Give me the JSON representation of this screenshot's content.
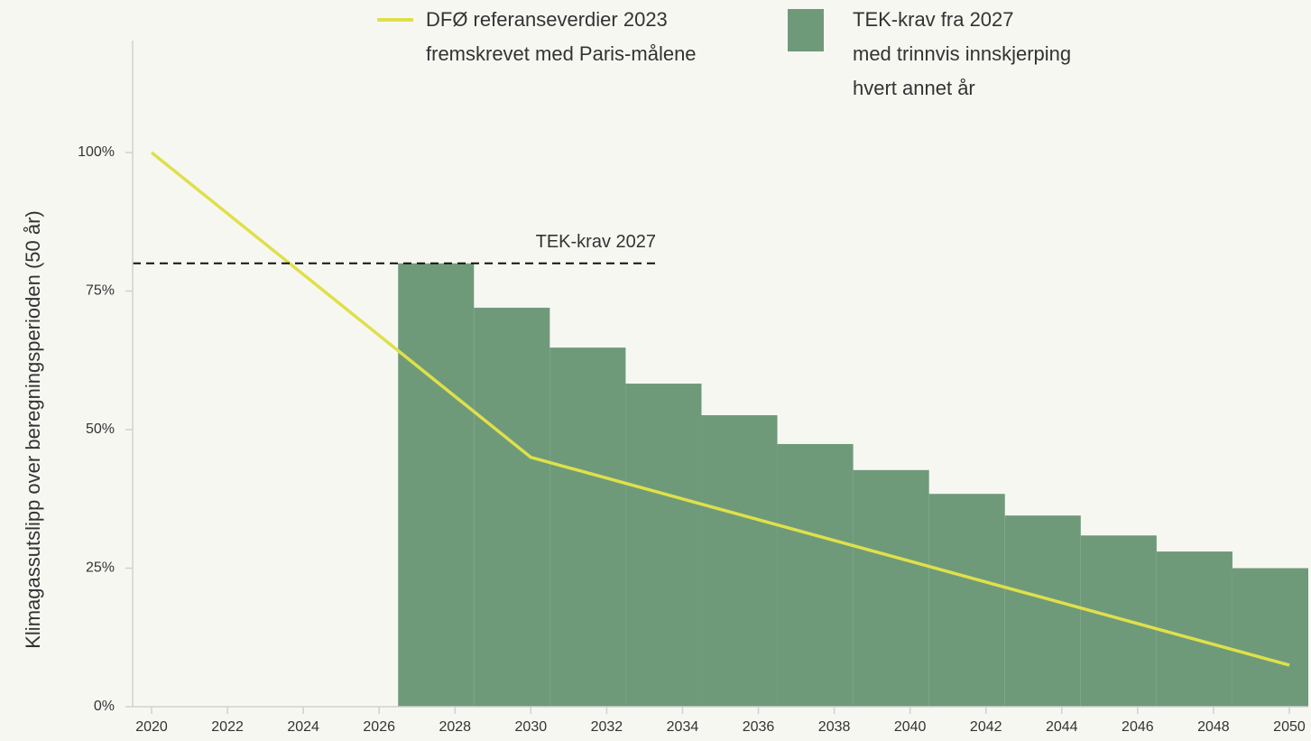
{
  "chart_data": {
    "type": "line",
    "ylabel": "Klimagassutslipp over  beregningsperioden (50 år)",
    "xlim": [
      2019.5,
      2050.5
    ],
    "xticks": [
      2020,
      2022,
      2024,
      2026,
      2028,
      2030,
      2032,
      2034,
      2036,
      2038,
      2040,
      2042,
      2044,
      2046,
      2048,
      2050
    ],
    "ylim": [
      0,
      120
    ],
    "yticks": [
      {
        "value": 0,
        "label": "0%"
      },
      {
        "value": 25,
        "label": "25%"
      },
      {
        "value": 50,
        "label": "50%"
      },
      {
        "value": 75,
        "label": "75%"
      },
      {
        "value": 100,
        "label": "100%"
      }
    ],
    "grid": false,
    "series": [
      {
        "name": "TEK-krav fra 2027\nmed trinnvis innskjerping\nhvert annet år",
        "type": "step",
        "color": "#6f9a7a",
        "x": [
          2027,
          2029,
          2031,
          2033,
          2035,
          2037,
          2039,
          2041,
          2043,
          2045,
          2047,
          2049
        ],
        "values": [
          80,
          72,
          64.8,
          58.3,
          52.6,
          47.4,
          42.7,
          38.4,
          34.5,
          30.9,
          28,
          25
        ]
      },
      {
        "name": "DFØ referanseverdier 2023\nfremskrevet med Paris-målene",
        "type": "line",
        "color": "#dfe04a",
        "x": [
          2020,
          2030,
          2050
        ],
        "values": [
          100,
          45,
          7.5
        ]
      }
    ],
    "reference_line": {
      "label": "TEK-krav 2027",
      "value": 80
    }
  }
}
